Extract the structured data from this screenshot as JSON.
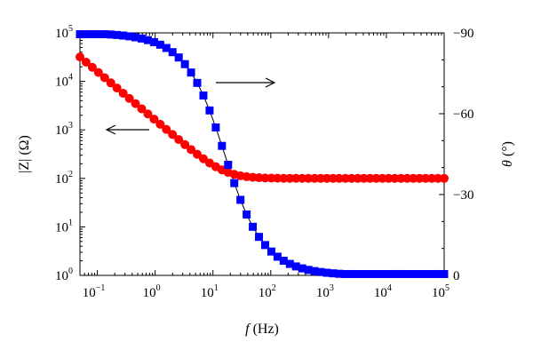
{
  "chart_data": {
    "type": "line",
    "x_scale": "log",
    "y_left_scale": "log",
    "xlabel_italic": "f",
    "xlabel_unit": "(Hz)",
    "ylabel_left_text": "|Z| (Ω)",
    "ylabel_right_italic": "θ",
    "ylabel_right_unit": "(°)",
    "xlim": [
      0.05,
      100000
    ],
    "ylim_left": [
      1,
      100000
    ],
    "ylim_right": [
      0,
      -90
    ],
    "x_ticks": [
      {
        "base": "10",
        "exp": "−1"
      },
      {
        "base": "10",
        "exp": "0"
      },
      {
        "base": "10",
        "exp": "1"
      },
      {
        "base": "10",
        "exp": "2"
      },
      {
        "base": "10",
        "exp": "3"
      },
      {
        "base": "10",
        "exp": "4"
      },
      {
        "base": "10",
        "exp": "5"
      }
    ],
    "y_left_ticks": [
      {
        "base": "10",
        "exp": "0"
      },
      {
        "base": "10",
        "exp": "1"
      },
      {
        "base": "10",
        "exp": "2"
      },
      {
        "base": "10",
        "exp": "3"
      },
      {
        "base": "10",
        "exp": "4"
      },
      {
        "base": "10",
        "exp": "5"
      }
    ],
    "y_right_ticks": [
      "0",
      "−30",
      "−60",
      "−90"
    ],
    "series": [
      {
        "axis": "left",
        "marker": "circle",
        "color": "#ff0000",
        "model": {
          "R_ohm": 100,
          "C_farad": 0.0001
        }
      },
      {
        "axis": "right",
        "marker": "square",
        "color": "#0000ff",
        "line_color": "#000000",
        "model": {
          "R_ohm": 100,
          "C_farad": 0.0001,
          "max_angle_deg": -89.5,
          "min_angle_deg": -0.5
        }
      }
    ],
    "x_points_range": [
      0.05,
      100000
    ],
    "points_count": 60,
    "annotations": [
      {
        "type": "arrow",
        "direction": "left",
        "points_to": "left-axis"
      },
      {
        "type": "arrow",
        "direction": "right",
        "points_to": "right-axis"
      }
    ],
    "grid": false,
    "legend": "none"
  }
}
